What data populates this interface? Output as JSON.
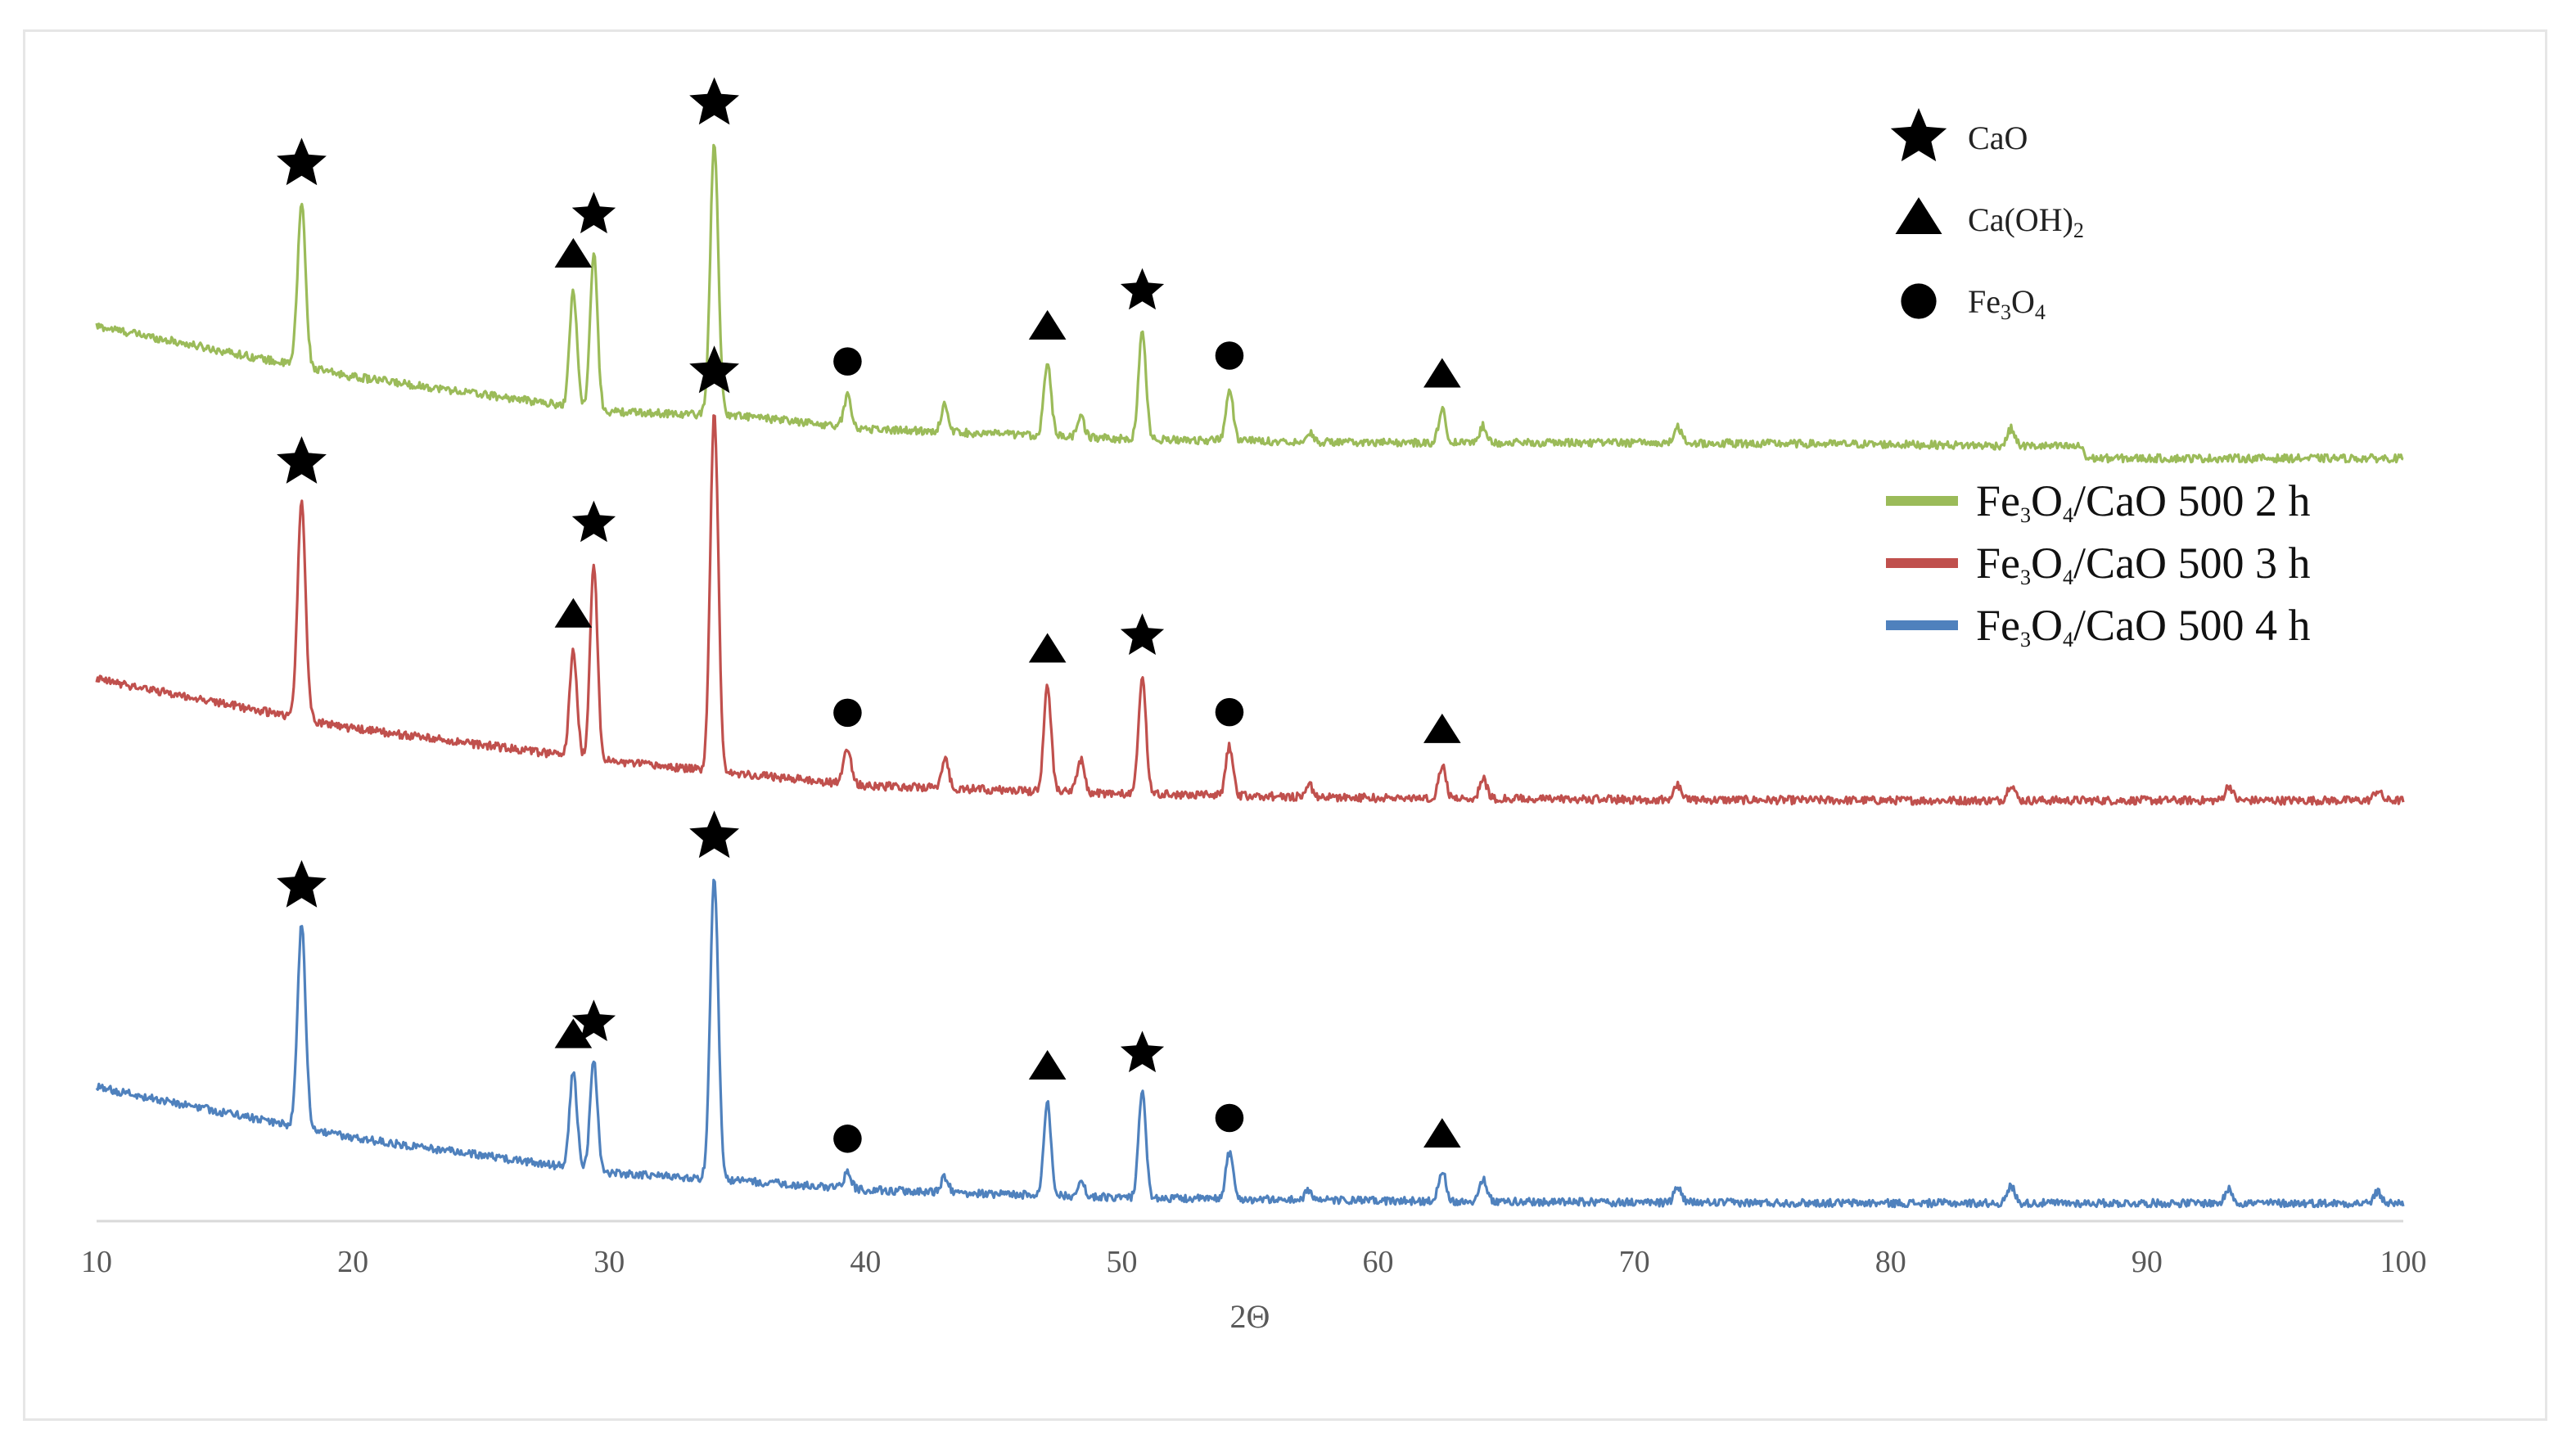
{
  "chart_data": {
    "type": "line",
    "title": "",
    "xlabel": "2Θ",
    "ylabel": "",
    "xlim": [
      10,
      100
    ],
    "xticks": [
      10,
      20,
      30,
      40,
      50,
      60,
      70,
      80,
      90,
      100
    ],
    "grid": false,
    "legend_position": "right",
    "series": [
      {
        "name": "Fe3O4/CaO 500 2 h",
        "color": "#9bbb59",
        "baseline": [
          [
            10,
            540
          ],
          [
            20,
            475
          ],
          [
            30,
            430
          ],
          [
            35,
            425
          ],
          [
            40,
            408
          ],
          [
            50,
            395
          ],
          [
            60,
            390
          ],
          [
            70,
            390
          ],
          [
            80,
            388
          ],
          [
            87.5,
            385
          ],
          [
            87.6,
            370
          ],
          [
            100,
            370
          ]
        ],
        "peaks": [
          [
            18.0,
            210
          ],
          [
            28.6,
            150
          ],
          [
            29.4,
            200
          ],
          [
            34.1,
            350
          ],
          [
            39.3,
            40
          ],
          [
            43.1,
            35
          ],
          [
            47.1,
            95
          ],
          [
            48.4,
            25
          ],
          [
            50.8,
            140
          ],
          [
            54.2,
            65
          ],
          [
            57.3,
            12
          ],
          [
            62.5,
            42
          ],
          [
            64.1,
            22
          ],
          [
            71.7,
            20
          ],
          [
            84.7,
            22
          ]
        ]
      },
      {
        "name": "Fe3O4/CaO 500 3 h",
        "color": "#c0504d",
        "baseline": [
          [
            10,
            540
          ],
          [
            20,
            480
          ],
          [
            30,
            440
          ],
          [
            35,
            425
          ],
          [
            40,
            410
          ],
          [
            50,
            400
          ],
          [
            60,
            395
          ],
          [
            70,
            393
          ],
          [
            80,
            392
          ],
          [
            90,
            392
          ],
          [
            100,
            392
          ]
        ],
        "peaks": [
          [
            18.0,
            265
          ],
          [
            28.6,
            130
          ],
          [
            29.4,
            240
          ],
          [
            34.1,
            440
          ],
          [
            39.3,
            45
          ],
          [
            43.1,
            35
          ],
          [
            47.1,
            130
          ],
          [
            48.4,
            40
          ],
          [
            50.8,
            145
          ],
          [
            54.2,
            60
          ],
          [
            57.3,
            15
          ],
          [
            62.5,
            40
          ],
          [
            64.1,
            25
          ],
          [
            71.7,
            18
          ],
          [
            84.7,
            20
          ],
          [
            93.2,
            18
          ],
          [
            99.0,
            12
          ]
        ]
      },
      {
        "name": "Fe3O4/CaO 500 4 h",
        "color": "#4f81bd",
        "baseline": [
          [
            10,
            540
          ],
          [
            20,
            475
          ],
          [
            30,
            430
          ],
          [
            35,
            420
          ],
          [
            40,
            408
          ],
          [
            50,
            398
          ],
          [
            60,
            394
          ],
          [
            70,
            392
          ],
          [
            80,
            391
          ],
          [
            90,
            391
          ],
          [
            100,
            391
          ]
        ],
        "peaks": [
          [
            18.0,
            260
          ],
          [
            28.6,
            125
          ],
          [
            29.4,
            140
          ],
          [
            34.1,
            390
          ],
          [
            39.3,
            20
          ],
          [
            43.1,
            20
          ],
          [
            47.1,
            120
          ],
          [
            48.4,
            20
          ],
          [
            50.8,
            135
          ],
          [
            54.2,
            60
          ],
          [
            57.3,
            12
          ],
          [
            62.5,
            40
          ],
          [
            64.1,
            30
          ],
          [
            71.7,
            20
          ],
          [
            84.7,
            22
          ],
          [
            93.2,
            18
          ],
          [
            99.0,
            14
          ]
        ]
      }
    ],
    "annotations": [
      {
        "series": 0,
        "x": 18.0,
        "phase": "CaO"
      },
      {
        "series": 0,
        "x": 28.6,
        "phase": "Ca(OH)2"
      },
      {
        "series": 0,
        "x": 29.4,
        "phase": "CaO"
      },
      {
        "series": 0,
        "x": 34.1,
        "phase": "CaO"
      },
      {
        "series": 0,
        "x": 39.3,
        "phase": "Fe3O4"
      },
      {
        "series": 0,
        "x": 47.1,
        "phase": "Ca(OH)2"
      },
      {
        "series": 0,
        "x": 50.8,
        "phase": "CaO"
      },
      {
        "series": 0,
        "x": 54.2,
        "phase": "Fe3O4"
      },
      {
        "series": 0,
        "x": 62.5,
        "phase": "Ca(OH)2"
      },
      {
        "series": 1,
        "x": 18.0,
        "phase": "CaO"
      },
      {
        "series": 1,
        "x": 28.6,
        "phase": "Ca(OH)2"
      },
      {
        "series": 1,
        "x": 29.4,
        "phase": "CaO"
      },
      {
        "series": 1,
        "x": 34.1,
        "phase": "CaO"
      },
      {
        "series": 1,
        "x": 39.3,
        "phase": "Fe3O4"
      },
      {
        "series": 1,
        "x": 47.1,
        "phase": "Ca(OH)2"
      },
      {
        "series": 1,
        "x": 50.8,
        "phase": "CaO"
      },
      {
        "series": 1,
        "x": 54.2,
        "phase": "Fe3O4"
      },
      {
        "series": 1,
        "x": 62.5,
        "phase": "Ca(OH)2"
      },
      {
        "series": 2,
        "x": 18.0,
        "phase": "CaO"
      },
      {
        "series": 2,
        "x": 28.6,
        "phase": "Ca(OH)2"
      },
      {
        "series": 2,
        "x": 29.4,
        "phase": "CaO"
      },
      {
        "series": 2,
        "x": 34.1,
        "phase": "CaO"
      },
      {
        "series": 2,
        "x": 39.3,
        "phase": "Fe3O4"
      },
      {
        "series": 2,
        "x": 47.1,
        "phase": "Ca(OH)2"
      },
      {
        "series": 2,
        "x": 50.8,
        "phase": "CaO"
      },
      {
        "series": 2,
        "x": 54.2,
        "phase": "Fe3O4"
      },
      {
        "series": 2,
        "x": 62.5,
        "phase": "Ca(OH)2"
      }
    ],
    "marker_legend": [
      {
        "symbol": "star",
        "label": "CaO"
      },
      {
        "symbol": "triangle",
        "label": "Ca(OH)2"
      },
      {
        "symbol": "circle",
        "label": "Fe3O4"
      }
    ]
  }
}
